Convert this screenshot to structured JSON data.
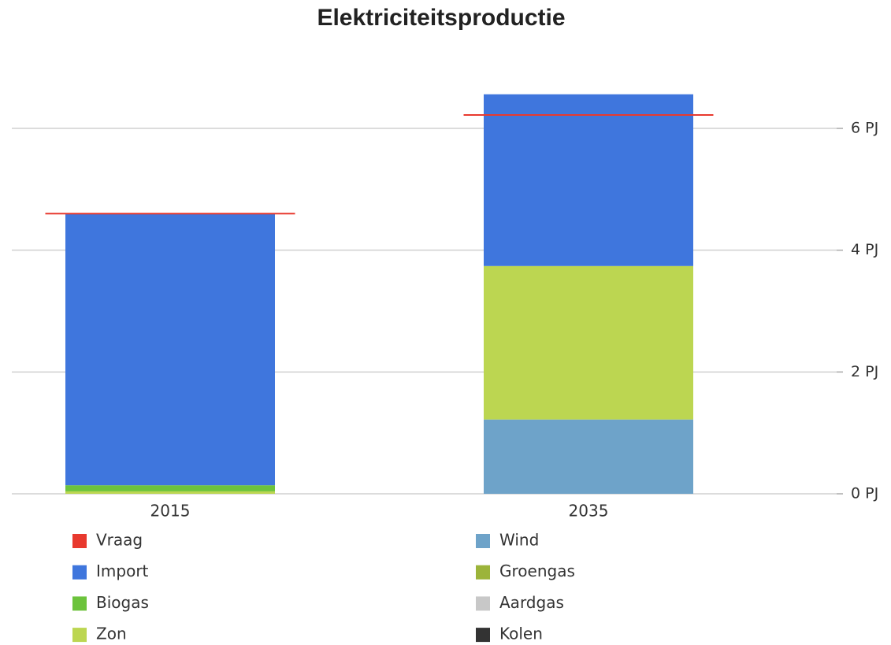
{
  "chart_data": {
    "type": "stacked-bar",
    "title": "Elektriciteitsproductie",
    "categories": [
      "2015",
      "2035"
    ],
    "series": [
      {
        "name": "Vraag",
        "color": "#e8392e",
        "type": "line-marker",
        "values": [
          4.6,
          6.22
        ]
      },
      {
        "name": "Import",
        "color": "#3f76dd",
        "values": [
          4.46,
          2.82
        ]
      },
      {
        "name": "Biogas",
        "color": "#6cc33c",
        "values": [
          0.1,
          0
        ]
      },
      {
        "name": "Zon",
        "color": "#bcd651",
        "values": [
          0.04,
          2.52
        ]
      },
      {
        "name": "Wind",
        "color": "#6ea3c9",
        "values": [
          0,
          1.22
        ]
      },
      {
        "name": "Groengas",
        "color": "#9cb43a",
        "values": [
          0,
          0
        ]
      },
      {
        "name": "Aardgas",
        "color": "#c8c8c8",
        "values": [
          0,
          0
        ]
      },
      {
        "name": "Kolen",
        "color": "#333333",
        "values": [
          0,
          0
        ]
      }
    ],
    "ylim": [
      0,
      7
    ],
    "yticks": [
      {
        "value": 0,
        "label": "0 PJ"
      },
      {
        "value": 2,
        "label": "2 PJ"
      },
      {
        "value": 4,
        "label": "4 PJ"
      },
      {
        "value": 6,
        "label": "6 PJ"
      }
    ],
    "grid": true
  }
}
